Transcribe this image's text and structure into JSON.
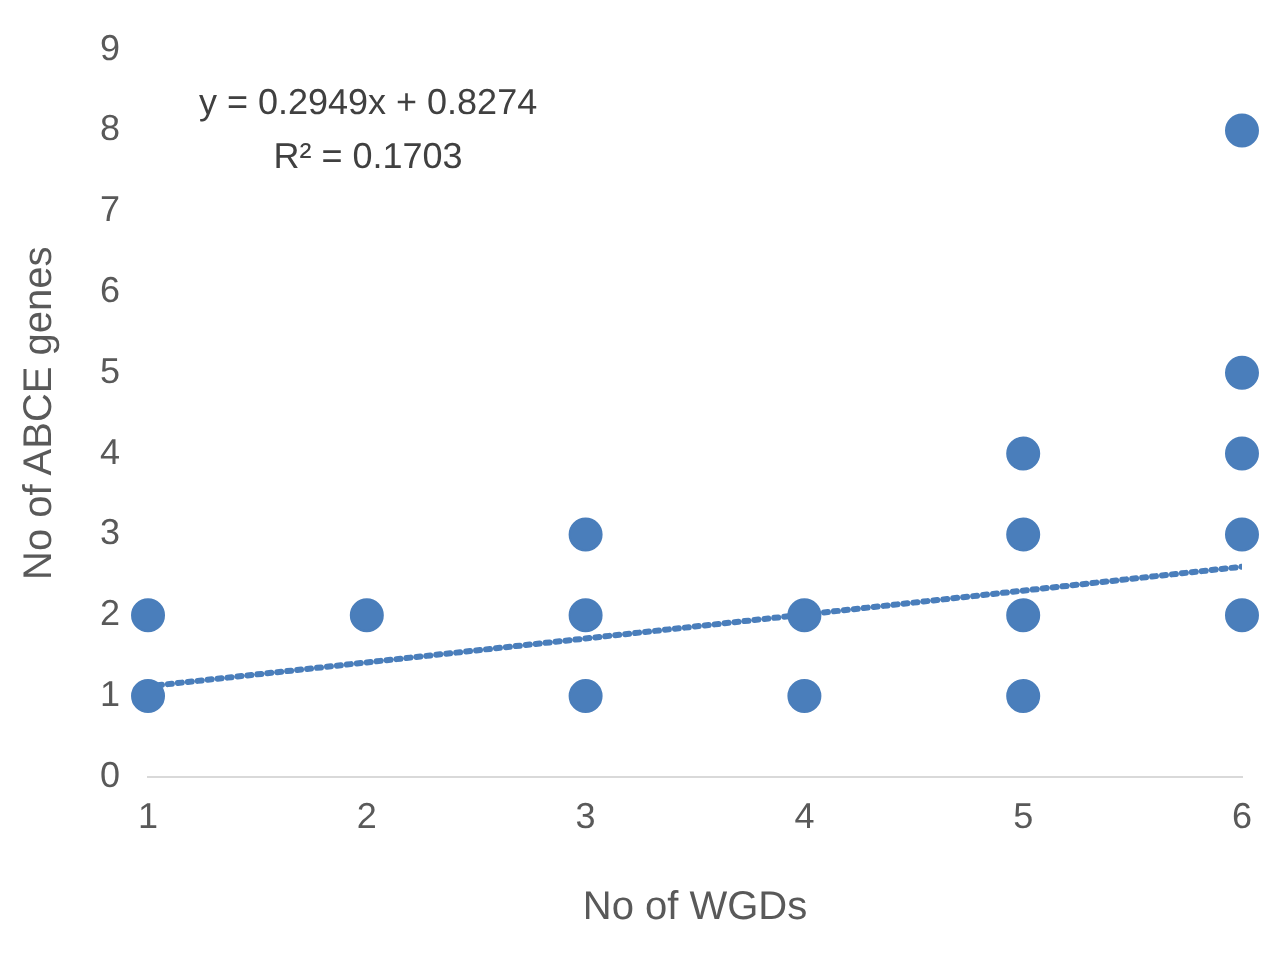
{
  "chart_data": {
    "type": "scatter",
    "xlabel": "No of WGDs",
    "ylabel": "No of ABCE genes",
    "annotations": [
      "y = 0.2949x + 0.8274",
      "R² = 0.1703"
    ],
    "xlim": [
      1,
      6
    ],
    "xticks": [
      1,
      2,
      3,
      4,
      5,
      6
    ],
    "ylim": [
      0,
      9
    ],
    "yticks": [
      0,
      1,
      2,
      3,
      4,
      5,
      6,
      7,
      8,
      9
    ],
    "grid": false,
    "legend": false,
    "marker": "circle",
    "series": [
      {
        "color": "#4a7ebb",
        "x": [
          1,
          1,
          2,
          3,
          3,
          3,
          4,
          4,
          5,
          5,
          5,
          5,
          6,
          6,
          6,
          6,
          6
        ],
        "values": [
          1,
          2,
          2,
          1,
          2,
          3,
          1,
          2,
          1,
          2,
          3,
          4,
          2,
          3,
          4,
          5,
          8
        ]
      },
      {
        "type": "line",
        "color": "#4a7ebb",
        "line_style": "dotted",
        "marker": "none",
        "x": [
          1,
          6
        ],
        "values": [
          1.12,
          2.6
        ]
      }
    ]
  }
}
